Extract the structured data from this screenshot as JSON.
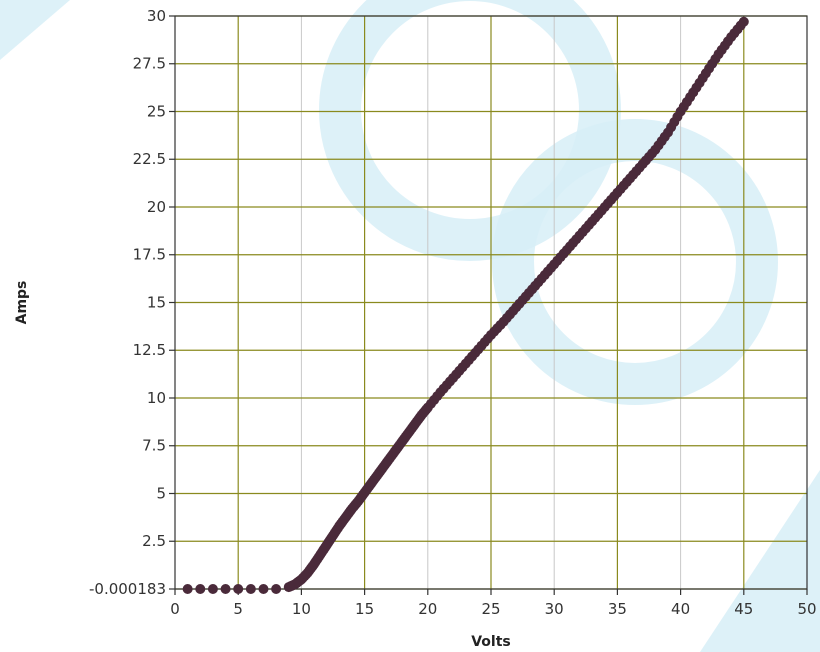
{
  "chart_data": {
    "type": "scatter",
    "title": "",
    "xlabel": "Volts",
    "ylabel": "Amps",
    "xlim": [
      0,
      50
    ],
    "ylim": [
      -0.000183,
      30
    ],
    "x_ticks": [
      0,
      5,
      10,
      15,
      20,
      25,
      30,
      35,
      40,
      45,
      50
    ],
    "x_tick_labels": [
      "0",
      "5",
      "10",
      "15",
      "20",
      "25",
      "30",
      "35",
      "40",
      "45",
      "50"
    ],
    "y_ticks": [
      -0.000183,
      2.5,
      5,
      7.5,
      10,
      12.5,
      15,
      17.5,
      20,
      22.5,
      25,
      27.5,
      30
    ],
    "y_tick_labels": [
      "-0.000183",
      "2.5",
      "5",
      "7.5",
      "10",
      "12.5",
      "15",
      "17.5",
      "20",
      "22.5",
      "25",
      "27.5",
      "30"
    ],
    "grid": true,
    "colors": {
      "background": "#ffffff",
      "major_grid": "#8a8a1e",
      "minor_grid": "#c8c8c8",
      "point": "#4a2a3a",
      "watermark": "#d7eef7"
    },
    "series": [
      {
        "x": [
          1,
          2,
          3,
          4,
          5,
          6,
          7,
          8,
          9,
          9.5,
          10,
          10.5,
          11,
          11.5,
          12,
          12.5,
          13,
          13.5,
          14,
          14.5,
          15,
          15.5,
          16,
          16.5,
          17,
          17.5,
          18,
          18.5,
          19,
          19.5,
          20,
          21,
          22,
          23,
          24,
          25,
          26,
          27,
          28,
          29,
          30,
          31,
          32,
          33,
          34,
          35,
          36,
          37,
          38,
          39,
          40,
          41,
          42,
          43,
          44,
          45
        ],
        "y": [
          0,
          0,
          0,
          0,
          0,
          0,
          0,
          0,
          0.1,
          0.25,
          0.5,
          0.85,
          1.3,
          1.8,
          2.3,
          2.8,
          3.3,
          3.75,
          4.2,
          4.6,
          5.05,
          5.5,
          5.95,
          6.4,
          6.85,
          7.3,
          7.75,
          8.2,
          8.65,
          9.1,
          9.5,
          10.3,
          11.05,
          11.8,
          12.55,
          13.3,
          14.0,
          14.75,
          15.5,
          16.25,
          17.0,
          17.75,
          18.5,
          19.25,
          20.0,
          20.75,
          21.5,
          22.25,
          23.0,
          23.9,
          25.0,
          26.0,
          27.0,
          28.0,
          28.9,
          29.7
        ]
      }
    ]
  }
}
